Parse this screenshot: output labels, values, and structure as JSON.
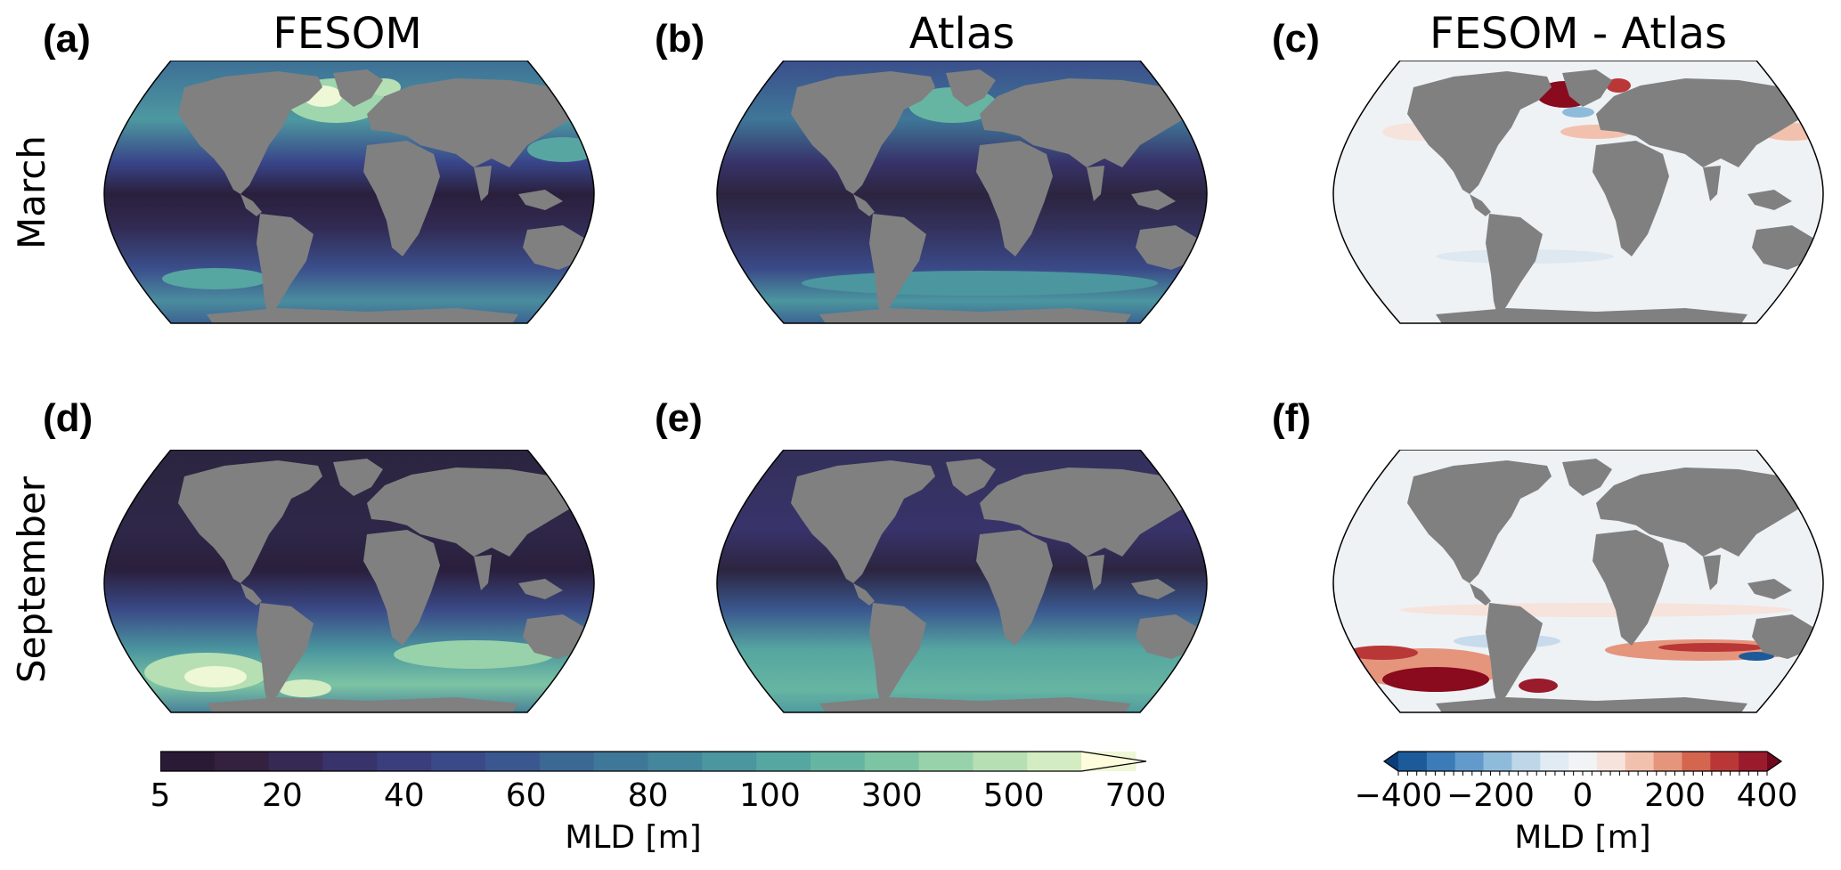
{
  "columns": [
    "FESOM",
    "Atlas",
    "FESOM - Atlas"
  ],
  "rows": [
    "March",
    "September"
  ],
  "panels": [
    "(a)",
    "(b)",
    "(c)",
    "(d)",
    "(e)",
    "(f)"
  ],
  "colorbar_mld": {
    "label": "MLD [m]",
    "ticks": [
      "5",
      "20",
      "40",
      "60",
      "80",
      "100",
      "300",
      "500",
      "700"
    ],
    "colors": [
      "#2a1a36",
      "#33213f",
      "#362a55",
      "#38336a",
      "#3b3e7c",
      "#3a4a88",
      "#3a588f",
      "#3c6894",
      "#3f7798",
      "#44879c",
      "#4b969f",
      "#56a6a1",
      "#66b5a2",
      "#7cc4a4",
      "#98d2aa",
      "#b7dfb4",
      "#d4ecc2",
      "#eef7d6",
      "#fdfcdc"
    ]
  },
  "colorbar_diff": {
    "label": "MLD [m]",
    "ticks": [
      "−400",
      "−200",
      "0",
      "200",
      "400"
    ],
    "colors": [
      "#0a3d78",
      "#1c5a9a",
      "#3b7bb8",
      "#629bcb",
      "#8fbbda",
      "#bdd6e8",
      "#e0ebf3",
      "#f1f3f4",
      "#f6e3dc",
      "#f2c1ad",
      "#e5957c",
      "#d4654f",
      "#ba3737",
      "#9a1b2c",
      "#70081e"
    ]
  },
  "palette": {
    "land": "#808080",
    "ocean_deep": "#2c2540",
    "ocean_mid": "#3f5a92",
    "ocean_high": "#5aa6a2",
    "ocean_bright": "#b8e2b6",
    "diff_bg": "#eef2f5",
    "diff_red": "#8a0a1e",
    "diff_orange": "#e8a088",
    "diff_blue": "#c7dbec"
  }
}
